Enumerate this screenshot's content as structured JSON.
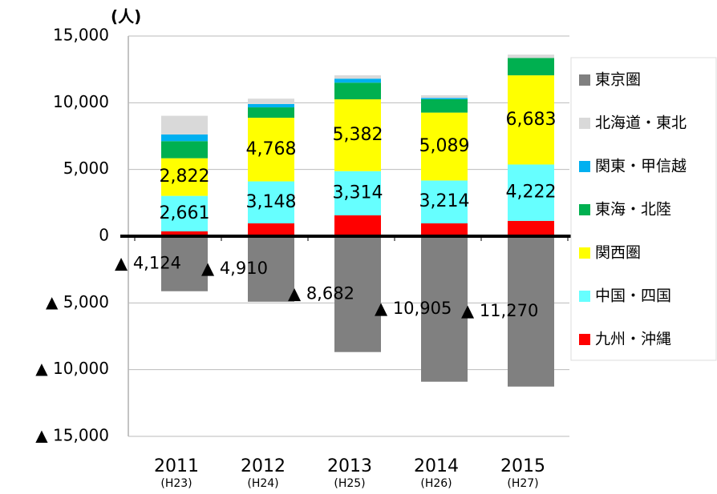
{
  "chart_data": {
    "type": "stacked_bar",
    "y_unit": "(人)",
    "categories": [
      "2011",
      "2012",
      "2013",
      "2014",
      "2015"
    ],
    "category_sublabels": [
      "(H23)",
      "(H24)",
      "(H25)",
      "(H26)",
      "(H27)"
    ],
    "series": [
      {
        "name": "九州・沖縄",
        "color": "#ff0000",
        "values": [
          360,
          960,
          1560,
          960,
          1150
        ]
      },
      {
        "name": "中国・四国",
        "color": "#66ffff",
        "values": [
          2661,
          3148,
          3314,
          3214,
          4222
        ],
        "value_labels": [
          "2,661",
          "3,148",
          "3,314",
          "3,214",
          "4,222"
        ]
      },
      {
        "name": "関西圏",
        "color": "#ffff00",
        "values": [
          2822,
          4768,
          5382,
          5089,
          6683
        ],
        "value_labels": [
          "2,822",
          "4,768",
          "5,382",
          "5,089",
          "6,683"
        ]
      },
      {
        "name": "東海・北陸",
        "color": "#00b050",
        "values": [
          1280,
          780,
          1250,
          1000,
          1300
        ]
      },
      {
        "name": "関東・甲信越",
        "color": "#00b0f0",
        "values": [
          500,
          250,
          300,
          100,
          0
        ]
      },
      {
        "name": "北海道・東北",
        "color": "#d9d9d9",
        "values": [
          1400,
          400,
          250,
          200,
          250
        ]
      },
      {
        "name": "東京圏",
        "color": "#808080",
        "values": [
          -4124,
          -4910,
          -8682,
          -10905,
          -11270
        ],
        "value_labels": [
          "▲ 4,124",
          "▲ 4,910",
          "▲ 8,682",
          "▲ 10,905",
          "▲ 11,270"
        ]
      }
    ],
    "ylim": [
      -15000,
      15000
    ],
    "yticks": [
      {
        "value": 15000,
        "label": "15,000"
      },
      {
        "value": 10000,
        "label": "10,000"
      },
      {
        "value": 5000,
        "label": "5,000"
      },
      0,
      {
        "value": -5000,
        "label": "▲ 5,000"
      },
      {
        "value": -10000,
        "label": "▲ 10,000"
      },
      {
        "value": -15000,
        "label": "▲ 15,000"
      }
    ],
    "grid": true,
    "legend": "right"
  }
}
